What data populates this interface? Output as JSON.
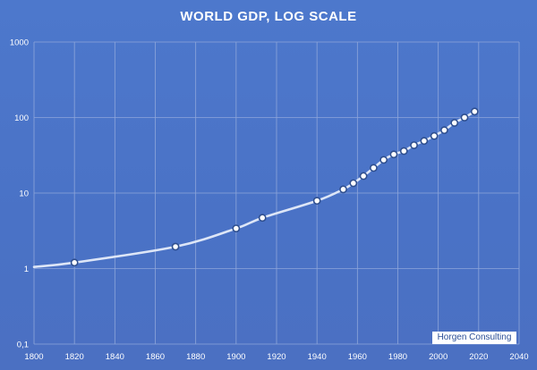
{
  "chart_data": {
    "type": "line",
    "title": "WORLD GDP, LOG SCALE",
    "xlabel": "",
    "ylabel": "",
    "y_scale": "log",
    "xlim": [
      1800,
      2040
    ],
    "ylim": [
      0.1,
      1000
    ],
    "x_ticks": [
      1800,
      1820,
      1840,
      1860,
      1880,
      1900,
      1920,
      1940,
      1960,
      1980,
      2000,
      2020,
      2040
    ],
    "y_ticks": [
      {
        "value": 0.1,
        "label": "0,1"
      },
      {
        "value": 1,
        "label": "1"
      },
      {
        "value": 10,
        "label": "10"
      },
      {
        "value": 100,
        "label": "100"
      },
      {
        "value": 1000,
        "label": "1000"
      }
    ],
    "grid": true,
    "legend": "none",
    "line_start": {
      "x": 1800,
      "y": 1.05
    },
    "series": [
      {
        "points": [
          {
            "x": 1820,
            "y": 1.2
          },
          {
            "x": 1870,
            "y": 1.95
          },
          {
            "x": 1900,
            "y": 3.4
          },
          {
            "x": 1913,
            "y": 4.7
          },
          {
            "x": 1940,
            "y": 7.9
          },
          {
            "x": 1953,
            "y": 11.2
          },
          {
            "x": 1958,
            "y": 13.5
          },
          {
            "x": 1963,
            "y": 16.8
          },
          {
            "x": 1968,
            "y": 21.5
          },
          {
            "x": 1973,
            "y": 27.5
          },
          {
            "x": 1978,
            "y": 32.5
          },
          {
            "x": 1983,
            "y": 36.0
          },
          {
            "x": 1988,
            "y": 43.0
          },
          {
            "x": 1993,
            "y": 49.0
          },
          {
            "x": 1998,
            "y": 57.0
          },
          {
            "x": 2003,
            "y": 68.0
          },
          {
            "x": 2008,
            "y": 85.0
          },
          {
            "x": 2013,
            "y": 100.0
          },
          {
            "x": 2018,
            "y": 120.0
          }
        ]
      }
    ],
    "colors": {
      "line": "#dde6f7",
      "marker_fill": "#ffffff",
      "marker_stroke": "#2f4f8f",
      "grid": "#8ea6da"
    }
  },
  "watermark": "Horgen Consulting"
}
